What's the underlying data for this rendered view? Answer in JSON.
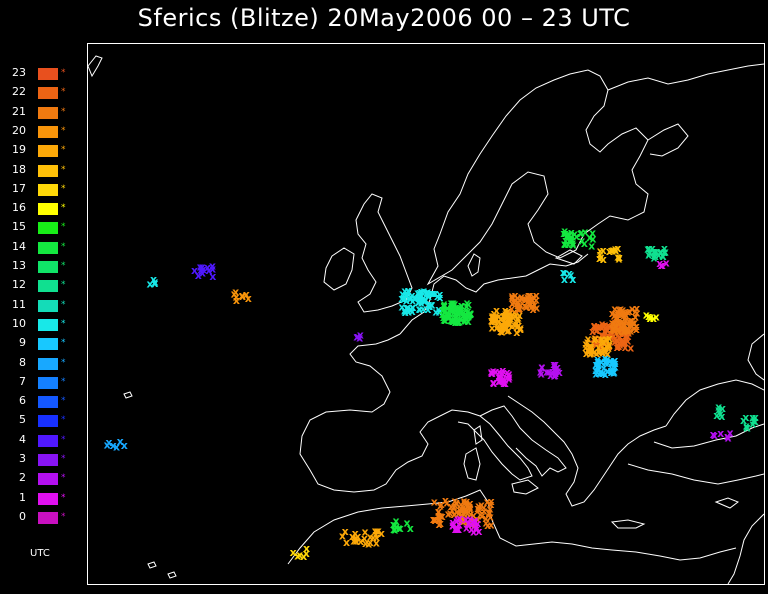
{
  "title": "Sferics (Blitze) 20May2006 00 – 23 UTC",
  "legend": {
    "unit": "UTC",
    "marker": "*",
    "items": [
      {
        "hour": "23",
        "color": "#e8501e"
      },
      {
        "hour": "22",
        "color": "#ec6414"
      },
      {
        "hour": "21",
        "color": "#f07a10"
      },
      {
        "hour": "20",
        "color": "#f8940a"
      },
      {
        "hour": "19",
        "color": "#fca808"
      },
      {
        "hour": "18",
        "color": "#ffc008"
      },
      {
        "hour": "17",
        "color": "#ffd808"
      },
      {
        "hour": "16",
        "color": "#ffff00"
      },
      {
        "hour": "15",
        "color": "#18ee18"
      },
      {
        "hour": "14",
        "color": "#14e840"
      },
      {
        "hour": "13",
        "color": "#10e468"
      },
      {
        "hour": "12",
        "color": "#10e090"
      },
      {
        "hour": "11",
        "color": "#14dcb8"
      },
      {
        "hour": "10",
        "color": "#18e8e8"
      },
      {
        "hour": "9",
        "color": "#18c8ff"
      },
      {
        "hour": "8",
        "color": "#18a8ff"
      },
      {
        "hour": "7",
        "color": "#1480ff"
      },
      {
        "hour": "6",
        "color": "#1458ff"
      },
      {
        "hour": "5",
        "color": "#1830ff"
      },
      {
        "hour": "4",
        "color": "#5018ff"
      },
      {
        "hour": "3",
        "color": "#8814f4"
      },
      {
        "hour": "2",
        "color": "#b410f0"
      },
      {
        "hour": "1",
        "color": "#e010f0"
      },
      {
        "hour": "0",
        "color": "#c810c0"
      }
    ]
  },
  "map": {
    "coastline_color": "#ffffff",
    "background": "#000000",
    "marker_symbol": "x"
  }
}
